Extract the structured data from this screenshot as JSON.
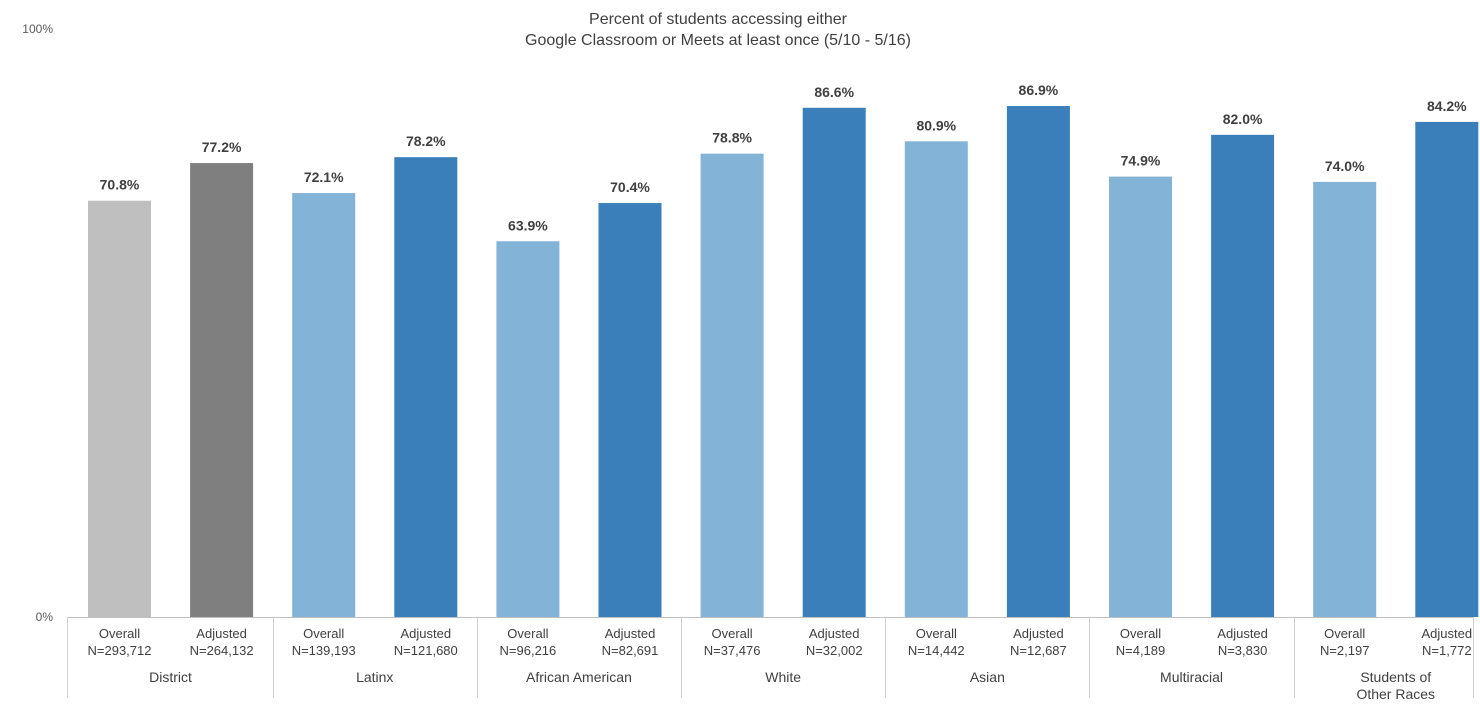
{
  "chart_data": {
    "type": "bar",
    "title": "Percent of students accessing either",
    "subtitle": "Google Classroom or Meets at least once (5/10 - 5/16)",
    "xlabel": "",
    "ylabel": "",
    "ylim": [
      0,
      100
    ],
    "y_tick_labels": [
      "0%",
      "100%"
    ],
    "grid": false,
    "legend": "none",
    "groups": [
      {
        "label": [
          "District"
        ],
        "bars": [
          {
            "category": "Overall",
            "n_label": "N=293,712",
            "value": 70.8,
            "value_label": "70.8%",
            "color": "#bfbfbf"
          },
          {
            "category": "Adjusted",
            "n_label": "N=264,132",
            "value": 77.2,
            "value_label": "77.2%",
            "color": "#7f7f7f"
          }
        ]
      },
      {
        "label": [
          "Latinx"
        ],
        "bars": [
          {
            "category": "Overall",
            "n_label": "N=139,193",
            "value": 72.1,
            "value_label": "72.1%",
            "color": "#84b3d8"
          },
          {
            "category": "Adjusted",
            "n_label": "N=121,680",
            "value": 78.2,
            "value_label": "78.2%",
            "color": "#3a7fba"
          }
        ]
      },
      {
        "label": [
          "African American"
        ],
        "bars": [
          {
            "category": "Overall",
            "n_label": "N=96,216",
            "value": 63.9,
            "value_label": "63.9%",
            "color": "#84b3d8"
          },
          {
            "category": "Adjusted",
            "n_label": "N=82,691",
            "value": 70.4,
            "value_label": "70.4%",
            "color": "#3a7fba"
          }
        ]
      },
      {
        "label": [
          "White"
        ],
        "bars": [
          {
            "category": "Overall",
            "n_label": "N=37,476",
            "value": 78.8,
            "value_label": "78.8%",
            "color": "#84b3d8"
          },
          {
            "category": "Adjusted",
            "n_label": "N=32,002",
            "value": 86.6,
            "value_label": "86.6%",
            "color": "#3a7fba"
          }
        ]
      },
      {
        "label": [
          "Asian"
        ],
        "bars": [
          {
            "category": "Overall",
            "n_label": "N=14,442",
            "value": 80.9,
            "value_label": "80.9%",
            "color": "#84b3d8"
          },
          {
            "category": "Adjusted",
            "n_label": "N=12,687",
            "value": 86.9,
            "value_label": "86.9%",
            "color": "#3a7fba"
          }
        ]
      },
      {
        "label": [
          "Multiracial"
        ],
        "bars": [
          {
            "category": "Overall",
            "n_label": "N=4,189",
            "value": 74.9,
            "value_label": "74.9%",
            "color": "#84b3d8"
          },
          {
            "category": "Adjusted",
            "n_label": "N=3,830",
            "value": 82.0,
            "value_label": "82.0%",
            "color": "#3a7fba"
          }
        ]
      },
      {
        "label": [
          "Students of",
          "Other Races"
        ],
        "bars": [
          {
            "category": "Overall",
            "n_label": "N=2,197",
            "value": 74.0,
            "value_label": "74.0%",
            "color": "#84b3d8"
          },
          {
            "category": "Adjusted",
            "n_label": "N=1,772",
            "value": 84.2,
            "value_label": "84.2%",
            "color": "#3a7fba"
          }
        ]
      }
    ]
  }
}
